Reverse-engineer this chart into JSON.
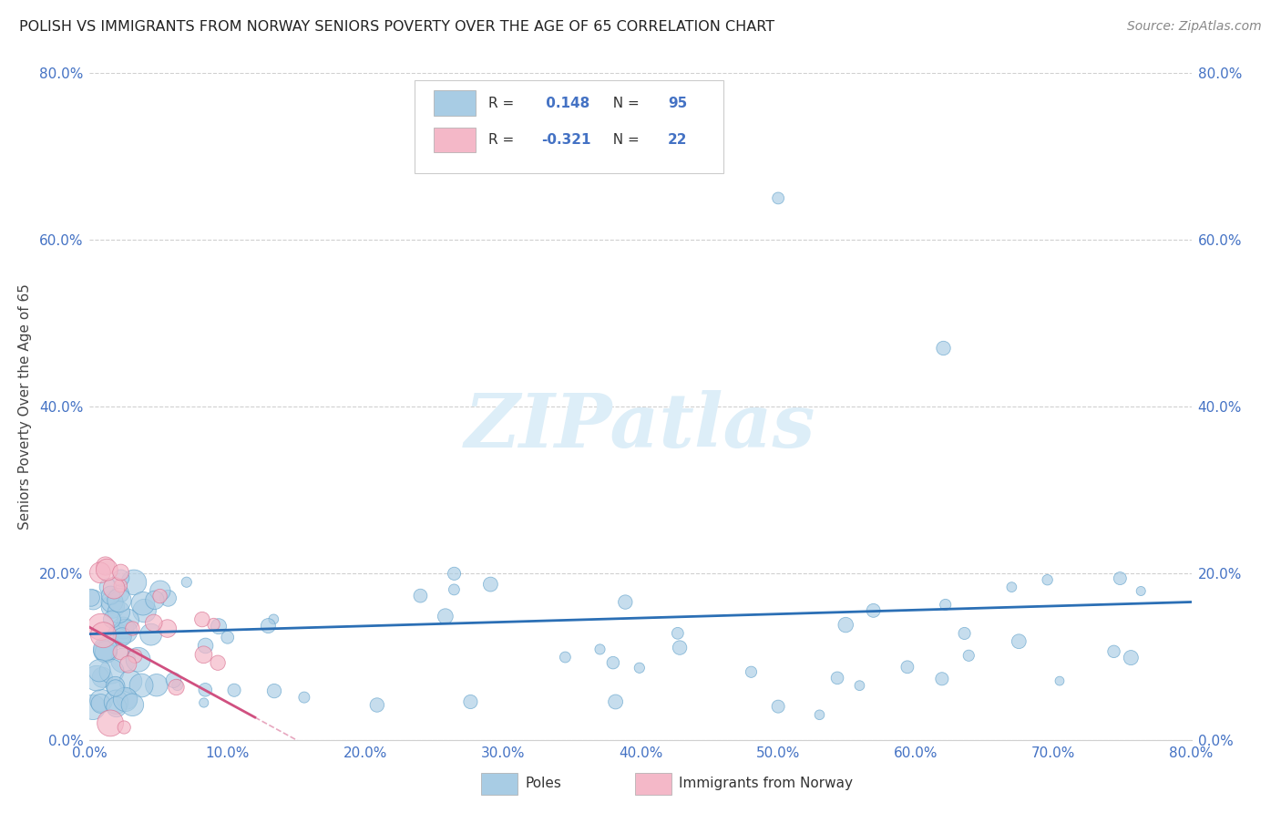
{
  "title": "POLISH VS IMMIGRANTS FROM NORWAY SENIORS POVERTY OVER THE AGE OF 65 CORRELATION CHART",
  "source": "Source: ZipAtlas.com",
  "ylabel_label": "Seniors Poverty Over the Age of 65",
  "legend_label1": "Poles",
  "legend_label2": "Immigrants from Norway",
  "R1": 0.148,
  "N1": 95,
  "R2": -0.321,
  "N2": 22,
  "xlim": [
    0.0,
    0.8
  ],
  "ylim": [
    0.0,
    0.8
  ],
  "blue_color": "#a8cce4",
  "blue_edge_color": "#5b9ec9",
  "blue_line_color": "#2b6fb5",
  "pink_color": "#f4b8c8",
  "pink_edge_color": "#d97090",
  "pink_line_color": "#d05080",
  "watermark_color": "#ddeef8",
  "background_color": "#ffffff",
  "grid_color": "#d0d0d0",
  "tick_color": "#4472C4",
  "title_color": "#222222",
  "source_color": "#888888",
  "ylabel_color": "#444444"
}
